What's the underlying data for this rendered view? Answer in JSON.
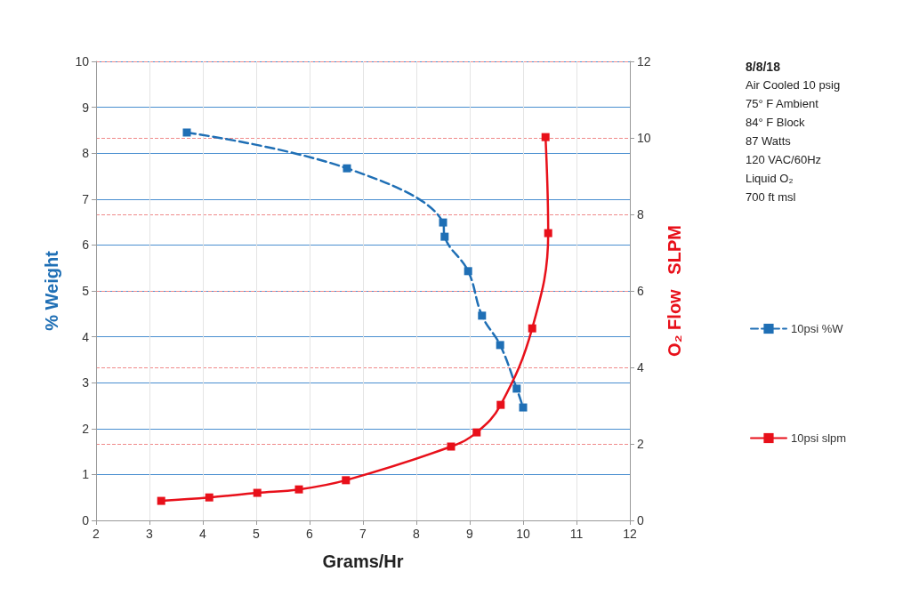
{
  "chart_data": {
    "type": "line",
    "xlabel": "Grams/Hr",
    "ylabel": "% Weight",
    "y2label": "O₂ Flow   SLPM",
    "xlim": [
      2,
      12
    ],
    "xticks": [
      2,
      3,
      4,
      5,
      6,
      7,
      8,
      9,
      10,
      11,
      12
    ],
    "ylim": [
      0,
      10
    ],
    "yticks": [
      0,
      1,
      2,
      3,
      4,
      5,
      6,
      7,
      8,
      9,
      10
    ],
    "y2lim": [
      0,
      12
    ],
    "y2ticks": [
      0,
      2,
      4,
      6,
      8,
      10,
      12
    ],
    "series": [
      {
        "name": "10psi %W",
        "color": "#1f6fb5",
        "line_style": "dashed",
        "x": [
          3.7,
          6.7,
          8.5,
          8.53,
          8.97,
          9.23,
          9.57,
          9.88,
          10.0
        ],
        "values": [
          8.45,
          7.67,
          6.49,
          6.18,
          5.43,
          4.46,
          3.82,
          2.87,
          2.46
        ]
      },
      {
        "name": "10psi slpm",
        "color": "#e8101a",
        "line_style": "solid",
        "axis": "y2",
        "x": [
          3.22,
          4.12,
          5.02,
          5.8,
          6.68,
          8.65,
          9.13,
          9.58,
          10.17,
          10.47,
          10.42
        ],
        "values": [
          0.51,
          0.6,
          0.72,
          0.81,
          1.05,
          1.93,
          2.3,
          3.02,
          5.02,
          7.51,
          10.02
        ]
      }
    ],
    "marker": "square",
    "grid": true,
    "legend": "right",
    "annotations": [
      "8/8/18",
      "Air Cooled 10 psig",
      "75° F Ambient",
      "84° F Block",
      "87 Watts",
      "120 VAC/60Hz",
      "Liquid O₂",
      "700 ft msl"
    ]
  }
}
